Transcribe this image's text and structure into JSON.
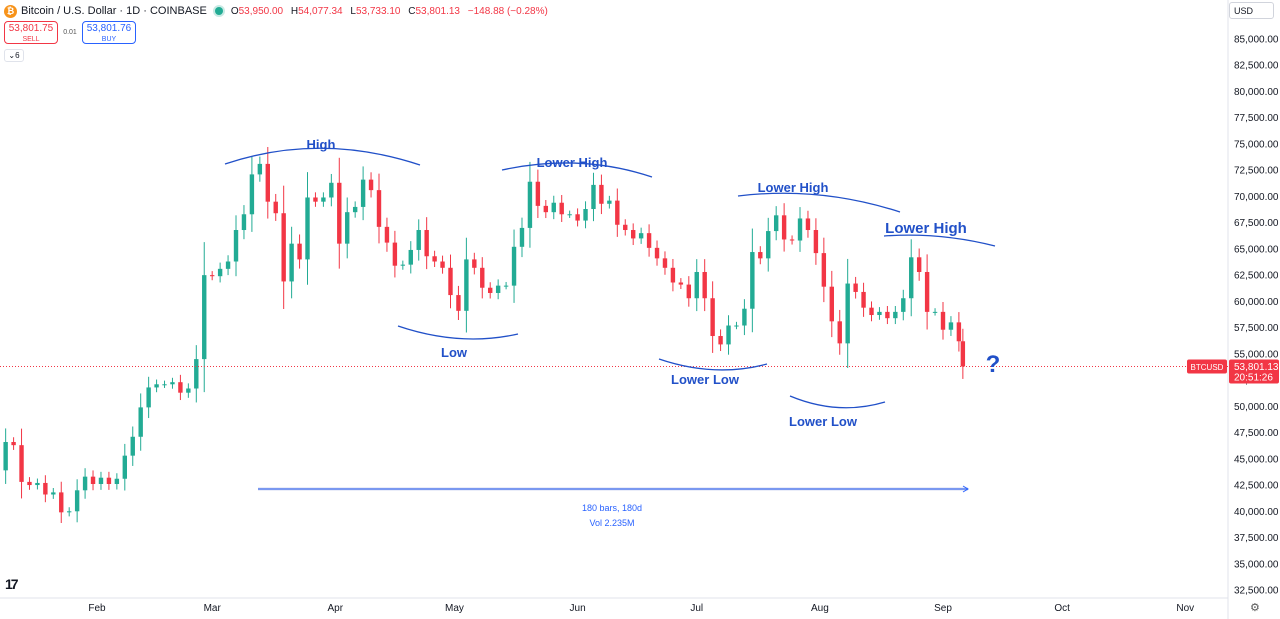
{
  "header": {
    "icon": "bitcoin-icon",
    "symbol_title": "Bitcoin / U.S. Dollar · 1D · COINBASE",
    "ohlc": [
      {
        "k": "O",
        "v": "53,950.00"
      },
      {
        "k": "H",
        "v": "54,077.34"
      },
      {
        "k": "L",
        "v": "53,733.10"
      },
      {
        "k": "C",
        "v": "53,801.13"
      },
      {
        "k": "",
        "v": "−148.88 (−0.28%)"
      }
    ]
  },
  "trade": {
    "sell_price": "53,801.75",
    "sell_label": "SELL",
    "spread": "0.01",
    "buy_price": "53,801.76",
    "buy_label": "BUY"
  },
  "collapse_label": "6",
  "currency": "USD",
  "colors": {
    "up": "#22ab94",
    "down": "#f23645",
    "annotation": "#2150c8",
    "price_line": "#f23645"
  },
  "chart_data": {
    "type": "candlestick",
    "ylim": [
      31500,
      87500
    ],
    "y_ticks": [
      32500,
      35000,
      37500,
      40000,
      42500,
      45000,
      47500,
      50000,
      52500,
      55000,
      57500,
      60000,
      62500,
      65000,
      67500,
      70000,
      72500,
      75000,
      77500,
      80000,
      82500,
      85000
    ],
    "y_tick_labels": [
      "32,500.00",
      "35,000.00",
      "37,500.00",
      "40,000.00",
      "42,500.00",
      "45,000.00",
      "47,500.00",
      "50,000.00",
      "52,500.00",
      "55,000.00",
      "57,500.00",
      "60,000.00",
      "62,500.00",
      "65,000.00",
      "67,500.00",
      "70,000.00",
      "72,500.00",
      "75,000.00",
      "77,500.00",
      "80,000.00",
      "82,500.00",
      "85,000.00"
    ],
    "x_ticks": [
      {
        "label": "Feb",
        "date": "2024-02-01"
      },
      {
        "label": "Mar",
        "date": "2024-03-01"
      },
      {
        "label": "Apr",
        "date": "2024-04-01"
      },
      {
        "label": "May",
        "date": "2024-05-01"
      },
      {
        "label": "Jun",
        "date": "2024-06-01"
      },
      {
        "label": "Jul",
        "date": "2024-07-01"
      },
      {
        "label": "Aug",
        "date": "2024-08-01"
      },
      {
        "label": "Sep",
        "date": "2024-09-01"
      },
      {
        "label": "Oct",
        "date": "2024-10-01"
      },
      {
        "label": "Nov",
        "date": "2024-11-01"
      }
    ],
    "last_price_label": "53,801.13",
    "price_tag_symbol": "BTCUSD",
    "countdown": "20:51:26",
    "closes": [
      [
        "2024-01-01",
        44200
      ],
      [
        "2024-01-03",
        42800
      ],
      [
        "2024-01-05",
        44100
      ],
      [
        "2024-01-07",
        43900
      ],
      [
        "2024-01-09",
        46600
      ],
      [
        "2024-01-11",
        46300
      ],
      [
        "2024-01-13",
        42800
      ],
      [
        "2024-01-15",
        42500
      ],
      [
        "2024-01-17",
        42700
      ],
      [
        "2024-01-19",
        41600
      ],
      [
        "2024-01-21",
        41800
      ],
      [
        "2024-01-23",
        39900
      ],
      [
        "2024-01-25",
        40000
      ],
      [
        "2024-01-27",
        42000
      ],
      [
        "2024-01-29",
        43300
      ],
      [
        "2024-01-31",
        42600
      ],
      [
        "2024-02-02",
        43200
      ],
      [
        "2024-02-04",
        42600
      ],
      [
        "2024-02-06",
        43100
      ],
      [
        "2024-02-08",
        45300
      ],
      [
        "2024-02-10",
        47100
      ],
      [
        "2024-02-12",
        49900
      ],
      [
        "2024-02-14",
        51800
      ],
      [
        "2024-02-16",
        52100
      ],
      [
        "2024-02-18",
        52100
      ],
      [
        "2024-02-20",
        52300
      ],
      [
        "2024-02-22",
        51300
      ],
      [
        "2024-02-24",
        51700
      ],
      [
        "2024-02-26",
        54500
      ],
      [
        "2024-02-28",
        62500
      ],
      [
        "2024-03-01",
        62400
      ],
      [
        "2024-03-03",
        63100
      ],
      [
        "2024-03-05",
        63800
      ],
      [
        "2024-03-07",
        66800
      ],
      [
        "2024-03-09",
        68300
      ],
      [
        "2024-03-11",
        72100
      ],
      [
        "2024-03-13",
        73100
      ],
      [
        "2024-03-15",
        69500
      ],
      [
        "2024-03-17",
        68400
      ],
      [
        "2024-03-19",
        61900
      ],
      [
        "2024-03-21",
        65500
      ],
      [
        "2024-03-23",
        64000
      ],
      [
        "2024-03-25",
        69900
      ],
      [
        "2024-03-27",
        69500
      ],
      [
        "2024-03-29",
        69900
      ],
      [
        "2024-03-31",
        71300
      ],
      [
        "2024-04-02",
        65500
      ],
      [
        "2024-04-04",
        68500
      ],
      [
        "2024-04-06",
        69000
      ],
      [
        "2024-04-08",
        71600
      ],
      [
        "2024-04-10",
        70600
      ],
      [
        "2024-04-12",
        67100
      ],
      [
        "2024-04-14",
        65600
      ],
      [
        "2024-04-16",
        63400
      ],
      [
        "2024-04-18",
        63500
      ],
      [
        "2024-04-20",
        64900
      ],
      [
        "2024-04-22",
        66800
      ],
      [
        "2024-04-24",
        64300
      ],
      [
        "2024-04-26",
        63800
      ],
      [
        "2024-04-28",
        63200
      ],
      [
        "2024-04-30",
        60600
      ],
      [
        "2024-05-02",
        59100
      ],
      [
        "2024-05-04",
        64000
      ],
      [
        "2024-05-06",
        63200
      ],
      [
        "2024-05-08",
        61300
      ],
      [
        "2024-05-10",
        60800
      ],
      [
        "2024-05-12",
        61500
      ],
      [
        "2024-05-14",
        61500
      ],
      [
        "2024-05-16",
        65200
      ],
      [
        "2024-05-18",
        67000
      ],
      [
        "2024-05-20",
        71400
      ],
      [
        "2024-05-22",
        69100
      ],
      [
        "2024-05-24",
        68500
      ],
      [
        "2024-05-26",
        69400
      ],
      [
        "2024-05-28",
        68300
      ],
      [
        "2024-05-30",
        68300
      ],
      [
        "2024-06-01",
        67700
      ],
      [
        "2024-06-03",
        68800
      ],
      [
        "2024-06-05",
        71100
      ],
      [
        "2024-06-07",
        69300
      ],
      [
        "2024-06-09",
        69600
      ],
      [
        "2024-06-11",
        67300
      ],
      [
        "2024-06-13",
        66800
      ],
      [
        "2024-06-15",
        66000
      ],
      [
        "2024-06-17",
        66500
      ],
      [
        "2024-06-19",
        65100
      ],
      [
        "2024-06-21",
        64100
      ],
      [
        "2024-06-23",
        63200
      ],
      [
        "2024-06-25",
        61800
      ],
      [
        "2024-06-27",
        61600
      ],
      [
        "2024-06-29",
        60300
      ],
      [
        "2024-07-01",
        62800
      ],
      [
        "2024-07-03",
        60300
      ],
      [
        "2024-07-05",
        56700
      ],
      [
        "2024-07-07",
        55900
      ],
      [
        "2024-07-09",
        57700
      ],
      [
        "2024-07-11",
        57700
      ],
      [
        "2024-07-13",
        59300
      ],
      [
        "2024-07-15",
        64700
      ],
      [
        "2024-07-17",
        64100
      ],
      [
        "2024-07-19",
        66700
      ],
      [
        "2024-07-21",
        68200
      ],
      [
        "2024-07-23",
        65900
      ],
      [
        "2024-07-25",
        65800
      ],
      [
        "2024-07-27",
        67900
      ],
      [
        "2024-07-29",
        66800
      ],
      [
        "2024-07-31",
        64600
      ],
      [
        "2024-08-02",
        61400
      ],
      [
        "2024-08-04",
        58100
      ],
      [
        "2024-08-06",
        56000
      ],
      [
        "2024-08-08",
        61700
      ],
      [
        "2024-08-10",
        60900
      ],
      [
        "2024-08-12",
        59400
      ],
      [
        "2024-08-14",
        58700
      ],
      [
        "2024-08-16",
        59000
      ],
      [
        "2024-08-18",
        58400
      ],
      [
        "2024-08-20",
        59000
      ],
      [
        "2024-08-22",
        60300
      ],
      [
        "2024-08-24",
        64200
      ],
      [
        "2024-08-26",
        62800
      ],
      [
        "2024-08-28",
        59000
      ],
      [
        "2024-08-30",
        59000
      ],
      [
        "2024-09-01",
        57300
      ],
      [
        "2024-09-03",
        58000
      ],
      [
        "2024-09-05",
        56200
      ],
      [
        "2024-09-06",
        53800
      ]
    ],
    "annotations": [
      {
        "text": "High"
      },
      {
        "text": "Lower High"
      },
      {
        "text": "Lower High"
      },
      {
        "text": "Lower High"
      },
      {
        "text": "Low"
      },
      {
        "text": "Lower Low"
      },
      {
        "text": "Lower Low"
      },
      {
        "text": "?"
      }
    ],
    "range_measure": {
      "line1": "180 bars, 180d",
      "line2": "Vol 2.235M"
    }
  }
}
